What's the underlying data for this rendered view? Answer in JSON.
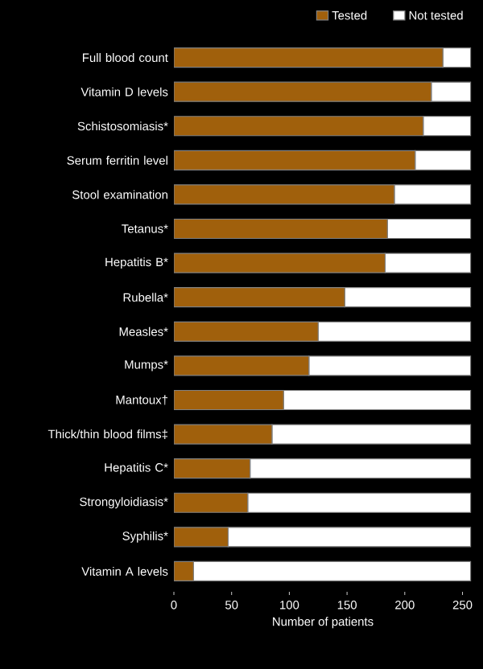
{
  "chart_data": {
    "type": "bar",
    "orientation": "horizontal",
    "stacked": true,
    "xlabel": "Number of patients",
    "categories": [
      "Full blood count",
      "Vitamin D levels",
      "Schistosomiasis*",
      "Serum ferritin level",
      "Stool examination",
      "Tetanus*",
      "Hepatitis B*",
      "Rubella*",
      "Measles*",
      "Mumps*",
      "Mantoux†",
      "Thick/thin blood films‡",
      "Hepatitis C*",
      "Strongyloidiasis*",
      "Syphilis*",
      "Vitamin A levels"
    ],
    "series": [
      {
        "name": "Tested",
        "color": "#a0600c",
        "values": [
          233,
          223,
          216,
          209,
          191,
          185,
          183,
          148,
          125,
          117,
          95,
          85,
          66,
          64,
          47,
          17
        ]
      },
      {
        "name": "Not tested",
        "color": "#ffffff",
        "values": [
          24,
          34,
          41,
          48,
          66,
          72,
          74,
          109,
          132,
          140,
          162,
          172,
          191,
          193,
          210,
          240
        ]
      }
    ],
    "xlim": [
      0,
      258
    ],
    "xticks": [
      0,
      50,
      100,
      150,
      200,
      250
    ],
    "legend": "top right",
    "grid": false
  }
}
